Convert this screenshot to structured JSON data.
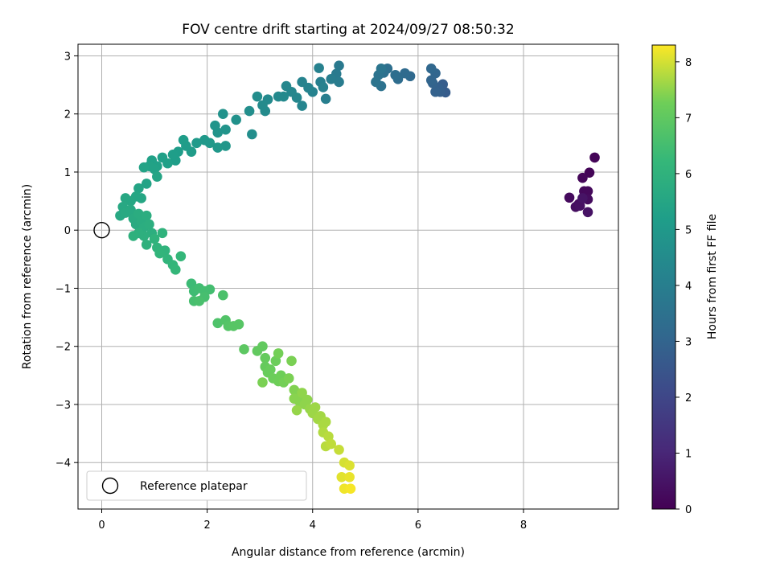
{
  "chart_data": {
    "type": "scatter",
    "title": "FOV centre drift starting at 2024/09/27 08:50:32",
    "xlabel": "Angular distance from reference (arcmin)",
    "ylabel": "Rotation from reference (arcmin)",
    "xlim": [
      -0.45,
      9.8
    ],
    "ylim": [
      -4.8,
      3.2
    ],
    "xticks": [
      "0",
      "2",
      "4",
      "6",
      "8"
    ],
    "yticks": [
      "−4",
      "−3",
      "−2",
      "−1",
      "0",
      "1",
      "2",
      "3"
    ],
    "grid": true,
    "legend": {
      "label": "Reference platepar",
      "placement": "lower-left"
    },
    "reference_point": {
      "x": 0,
      "y": 0
    },
    "colorbar": {
      "label": "Hours from first FF file",
      "range": [
        0,
        8.3
      ],
      "ticks": [
        "0",
        "1",
        "2",
        "3",
        "4",
        "5",
        "6",
        "7",
        "8"
      ],
      "colormap": "viridis"
    },
    "points": [
      [
        9.35,
        1.25,
        0.1
      ],
      [
        9.25,
        0.99,
        0.1
      ],
      [
        9.12,
        0.9,
        0.15
      ],
      [
        9.15,
        0.67,
        0.2
      ],
      [
        9.22,
        0.67,
        0.2
      ],
      [
        8.87,
        0.56,
        0.25
      ],
      [
        9.05,
        0.45,
        0.3
      ],
      [
        9.22,
        0.53,
        0.3
      ],
      [
        8.99,
        0.4,
        0.35
      ],
      [
        9.07,
        0.42,
        0.4
      ],
      [
        9.22,
        0.31,
        0.45
      ],
      [
        9.12,
        0.55,
        0.5
      ],
      [
        6.52,
        2.37,
        2.7
      ],
      [
        6.47,
        2.51,
        2.75
      ],
      [
        6.42,
        2.38,
        2.8
      ],
      [
        6.38,
        2.45,
        2.85
      ],
      [
        6.33,
        2.38,
        2.9
      ],
      [
        6.28,
        2.53,
        2.95
      ],
      [
        6.25,
        2.58,
        3.0
      ],
      [
        6.33,
        2.7,
        3.05
      ],
      [
        6.25,
        2.78,
        3.1
      ],
      [
        5.85,
        2.65,
        3.2
      ],
      [
        5.75,
        2.7,
        3.25
      ],
      [
        5.62,
        2.6,
        3.3
      ],
      [
        5.57,
        2.67,
        3.35
      ],
      [
        5.42,
        2.78,
        3.4
      ],
      [
        5.35,
        2.71,
        3.45
      ],
      [
        5.3,
        2.48,
        3.5
      ],
      [
        5.25,
        2.67,
        3.55
      ],
      [
        5.2,
        2.55,
        3.6
      ],
      [
        5.3,
        2.78,
        3.65
      ],
      [
        4.5,
        2.83,
        3.8
      ],
      [
        4.45,
        2.69,
        3.85
      ],
      [
        4.5,
        2.55,
        3.9
      ],
      [
        4.35,
        2.6,
        3.95
      ],
      [
        4.25,
        2.26,
        4.0
      ],
      [
        4.15,
        2.55,
        4.05
      ],
      [
        4.12,
        2.79,
        4.1
      ],
      [
        4.2,
        2.46,
        4.1
      ],
      [
        4.0,
        2.38,
        4.15
      ],
      [
        3.92,
        2.45,
        4.2
      ],
      [
        3.8,
        2.55,
        4.2
      ],
      [
        3.8,
        2.14,
        4.25
      ],
      [
        3.7,
        2.28,
        4.3
      ],
      [
        3.6,
        2.38,
        4.3
      ],
      [
        3.5,
        2.48,
        4.35
      ],
      [
        3.45,
        2.3,
        4.4
      ],
      [
        3.35,
        2.3,
        4.4
      ],
      [
        3.15,
        2.25,
        4.45
      ],
      [
        3.05,
        2.15,
        4.5
      ],
      [
        3.1,
        2.05,
        4.5
      ],
      [
        2.95,
        2.3,
        4.55
      ],
      [
        2.8,
        2.05,
        4.6
      ],
      [
        2.85,
        1.65,
        4.6
      ],
      [
        2.55,
        1.9,
        4.7
      ],
      [
        2.3,
        2.0,
        4.75
      ],
      [
        2.35,
        1.73,
        4.8
      ],
      [
        2.2,
        1.68,
        4.8
      ],
      [
        2.15,
        1.8,
        4.85
      ],
      [
        2.35,
        1.45,
        4.9
      ],
      [
        2.2,
        1.42,
        4.95
      ],
      [
        2.05,
        1.5,
        5.0
      ],
      [
        1.95,
        1.55,
        5.0
      ],
      [
        1.8,
        1.5,
        5.05
      ],
      [
        1.7,
        1.35,
        5.1
      ],
      [
        1.6,
        1.45,
        5.1
      ],
      [
        1.55,
        1.55,
        5.15
      ],
      [
        1.45,
        1.35,
        5.15
      ],
      [
        1.4,
        1.2,
        5.2
      ],
      [
        1.35,
        1.3,
        5.2
      ],
      [
        1.25,
        1.15,
        5.25
      ],
      [
        1.15,
        1.25,
        5.25
      ],
      [
        1.05,
        1.1,
        5.3
      ],
      [
        0.95,
        1.2,
        5.3
      ],
      [
        1.0,
        1.05,
        5.35
      ],
      [
        0.9,
        1.1,
        5.35
      ],
      [
        0.8,
        1.08,
        5.4
      ],
      [
        0.85,
        0.8,
        5.4
      ],
      [
        0.7,
        0.72,
        5.45
      ],
      [
        1.05,
        0.92,
        5.45
      ],
      [
        0.75,
        0.55,
        5.5
      ],
      [
        0.65,
        0.58,
        5.5
      ],
      [
        0.55,
        0.5,
        5.55
      ],
      [
        0.45,
        0.55,
        5.55
      ],
      [
        0.4,
        0.4,
        5.6
      ],
      [
        0.35,
        0.25,
        5.6
      ],
      [
        0.45,
        0.3,
        5.65
      ],
      [
        0.55,
        0.35,
        5.65
      ],
      [
        0.6,
        0.2,
        5.7
      ],
      [
        0.65,
        0.1,
        5.7
      ],
      [
        0.7,
        0.28,
        5.75
      ],
      [
        0.75,
        0.15,
        5.75
      ],
      [
        0.8,
        0.05,
        5.8
      ],
      [
        0.85,
        0.25,
        5.8
      ],
      [
        0.9,
        0.1,
        5.85
      ],
      [
        0.95,
        -0.05,
        5.85
      ],
      [
        0.8,
        -0.1,
        5.9
      ],
      [
        0.7,
        -0.05,
        5.9
      ],
      [
        0.6,
        -0.1,
        5.95
      ],
      [
        0.85,
        -0.25,
        5.95
      ],
      [
        1.0,
        -0.15,
        6.0
      ],
      [
        1.15,
        -0.05,
        6.0
      ],
      [
        1.05,
        -0.3,
        6.05
      ],
      [
        1.2,
        -0.35,
        6.05
      ],
      [
        1.1,
        -0.4,
        6.1
      ],
      [
        1.25,
        -0.5,
        6.1
      ],
      [
        1.35,
        -0.6,
        6.15
      ],
      [
        1.4,
        -0.68,
        6.2
      ],
      [
        1.5,
        -0.45,
        6.2
      ],
      [
        1.7,
        -0.92,
        6.35
      ],
      [
        1.75,
        -1.05,
        6.4
      ],
      [
        1.85,
        -1.0,
        6.45
      ],
      [
        1.95,
        -1.05,
        6.5
      ],
      [
        2.05,
        -1.02,
        6.5
      ],
      [
        1.95,
        -1.15,
        6.55
      ],
      [
        1.75,
        -1.22,
        6.55
      ],
      [
        1.85,
        -1.22,
        6.6
      ],
      [
        2.3,
        -1.12,
        6.65
      ],
      [
        2.2,
        -1.6,
        6.7
      ],
      [
        2.35,
        -1.55,
        6.75
      ],
      [
        2.4,
        -1.65,
        6.8
      ],
      [
        2.5,
        -1.65,
        6.85
      ],
      [
        2.6,
        -1.62,
        6.85
      ],
      [
        2.7,
        -2.05,
        6.95
      ],
      [
        2.95,
        -2.08,
        7.05
      ],
      [
        3.05,
        -2.0,
        7.05
      ],
      [
        3.1,
        -2.2,
        7.1
      ],
      [
        3.1,
        -2.35,
        7.1
      ],
      [
        3.15,
        -2.45,
        7.15
      ],
      [
        3.2,
        -2.4,
        7.15
      ],
      [
        3.25,
        -2.55,
        7.2
      ],
      [
        3.3,
        -2.25,
        7.2
      ],
      [
        3.35,
        -2.6,
        7.25
      ],
      [
        3.4,
        -2.5,
        7.25
      ],
      [
        3.45,
        -2.62,
        7.3
      ],
      [
        3.35,
        -2.12,
        7.3
      ],
      [
        3.6,
        -2.25,
        7.35
      ],
      [
        3.55,
        -2.55,
        7.35
      ],
      [
        3.05,
        -2.62,
        7.35
      ],
      [
        3.65,
        -2.75,
        7.4
      ],
      [
        3.7,
        -2.8,
        7.4
      ],
      [
        3.75,
        -2.95,
        7.45
      ],
      [
        3.65,
        -2.9,
        7.45
      ],
      [
        3.8,
        -2.8,
        7.5
      ],
      [
        3.85,
        -3.0,
        7.5
      ],
      [
        3.9,
        -2.92,
        7.5
      ],
      [
        3.7,
        -3.1,
        7.55
      ],
      [
        3.95,
        -3.08,
        7.55
      ],
      [
        4.0,
        -3.15,
        7.6
      ],
      [
        4.05,
        -3.05,
        7.6
      ],
      [
        4.1,
        -3.25,
        7.65
      ],
      [
        4.15,
        -3.2,
        7.65
      ],
      [
        4.2,
        -3.35,
        7.7
      ],
      [
        4.25,
        -3.3,
        7.7
      ],
      [
        4.2,
        -3.48,
        7.75
      ],
      [
        4.3,
        -3.55,
        7.8
      ],
      [
        4.25,
        -3.72,
        7.8
      ],
      [
        4.35,
        -3.68,
        7.85
      ],
      [
        4.5,
        -3.78,
        7.9
      ],
      [
        4.6,
        -4.0,
        8.0
      ],
      [
        4.7,
        -4.05,
        8.05
      ],
      [
        4.55,
        -4.25,
        8.1
      ],
      [
        4.7,
        -4.25,
        8.15
      ],
      [
        4.6,
        -4.45,
        8.2
      ],
      [
        4.72,
        -4.45,
        8.25
      ]
    ]
  }
}
